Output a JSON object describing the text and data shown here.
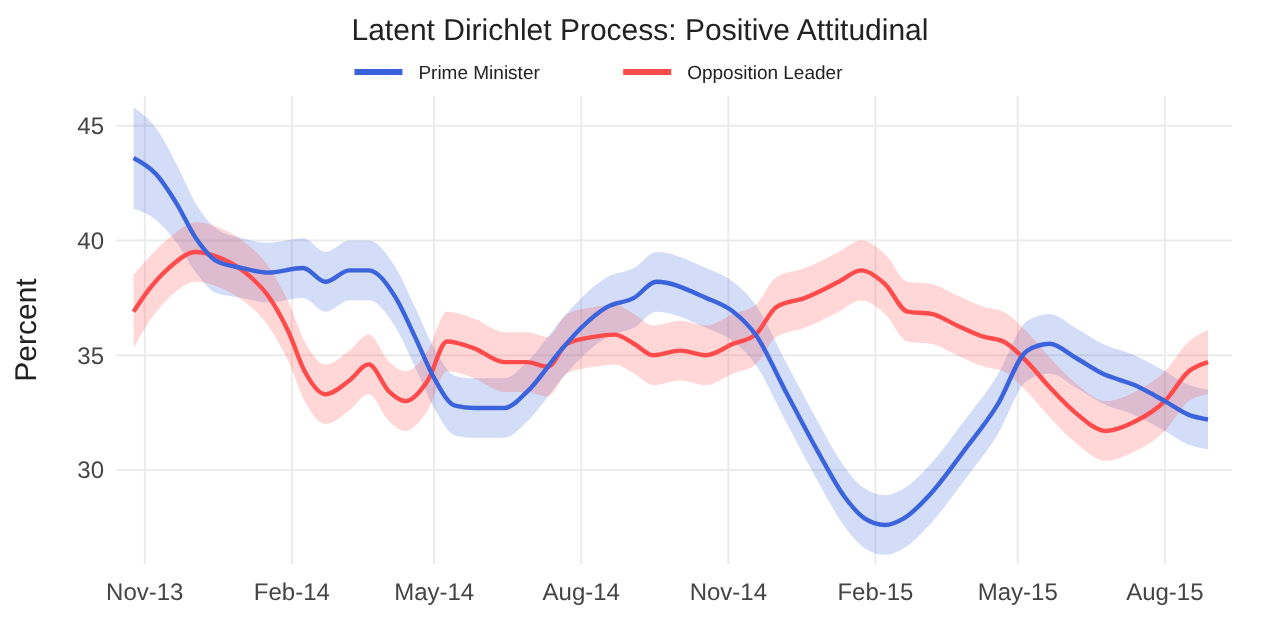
{
  "chart_data": {
    "type": "line",
    "title": "Latent Dirichlet Process: Positive Attitudinal",
    "ylabel": "Percent",
    "xlim": [
      "2013-10-14",
      "2015-09-12"
    ],
    "ylim": [
      25.9,
      46.3
    ],
    "xticks": [
      {
        "value": "2013-11-01",
        "label": "Nov-13"
      },
      {
        "value": "2014-02-01",
        "label": "Feb-14"
      },
      {
        "value": "2014-05-01",
        "label": "May-14"
      },
      {
        "value": "2014-08-01",
        "label": "Aug-14"
      },
      {
        "value": "2014-11-01",
        "label": "Nov-14"
      },
      {
        "value": "2015-02-01",
        "label": "Feb-15"
      },
      {
        "value": "2015-05-01",
        "label": "May-15"
      },
      {
        "value": "2015-08-01",
        "label": "Aug-15"
      }
    ],
    "yticks": [
      30,
      35,
      40,
      45
    ],
    "grid": true,
    "legend": "top",
    "series": [
      {
        "name": "Prime Minister",
        "color": "#3b64dc",
        "x": [
          "2013-10-25",
          "2013-11-08",
          "2013-11-21",
          "2013-12-03",
          "2013-12-16",
          "2014-01-01",
          "2014-01-17",
          "2014-02-08",
          "2014-02-22",
          "2014-03-09",
          "2014-03-21",
          "2014-04-07",
          "2014-04-19",
          "2014-05-01",
          "2014-05-14",
          "2014-05-26",
          "2014-06-14",
          "2014-06-28",
          "2014-07-19",
          "2014-08-01",
          "2014-08-17",
          "2014-09-03",
          "2014-09-17",
          "2014-10-18",
          "2014-11-04",
          "2014-11-18",
          "2014-12-07",
          "2014-12-27",
          "2015-01-13",
          "2015-01-25",
          "2015-02-07",
          "2015-02-19",
          "2015-03-08",
          "2015-03-28",
          "2015-04-18",
          "2015-05-07",
          "2015-05-21",
          "2015-06-06",
          "2015-06-23",
          "2015-07-13",
          "2015-08-01",
          "2015-08-16",
          "2015-08-28"
        ],
        "values": [
          43.6,
          42.9,
          41.6,
          40.1,
          39.1,
          38.8,
          38.6,
          38.8,
          38.2,
          38.7,
          38.7,
          37.5,
          35.8,
          34.0,
          32.8,
          32.7,
          32.7,
          33.4,
          35.2,
          36.2,
          37.1,
          37.5,
          38.2,
          37.5,
          36.9,
          35.9,
          33.4,
          30.8,
          28.8,
          27.9,
          27.6,
          27.9,
          29.0,
          30.8,
          32.8,
          35.2,
          35.5,
          34.9,
          34.2,
          33.7,
          33.0,
          32.4,
          32.2
        ],
        "lower": [
          41.4,
          40.9,
          39.9,
          38.6,
          37.7,
          37.5,
          37.3,
          37.5,
          36.9,
          37.4,
          37.4,
          36.2,
          34.5,
          32.7,
          31.5,
          31.4,
          31.4,
          32.1,
          33.9,
          34.9,
          35.8,
          36.2,
          36.9,
          36.2,
          35.6,
          34.6,
          32.1,
          29.5,
          27.5,
          26.6,
          26.3,
          26.6,
          27.7,
          29.5,
          31.5,
          33.9,
          34.2,
          33.6,
          32.9,
          32.4,
          31.7,
          31.1,
          30.9
        ],
        "upper": [
          45.8,
          44.9,
          43.3,
          41.6,
          40.5,
          40.1,
          39.9,
          40.1,
          39.5,
          40.0,
          40.0,
          38.8,
          37.1,
          35.3,
          34.1,
          34.0,
          34.0,
          34.7,
          36.5,
          37.5,
          38.4,
          38.8,
          39.5,
          38.8,
          38.2,
          37.2,
          34.7,
          32.1,
          30.1,
          29.2,
          28.9,
          29.2,
          30.3,
          32.1,
          34.1,
          36.5,
          36.8,
          36.2,
          35.5,
          35.0,
          34.3,
          33.7,
          33.5
        ]
      },
      {
        "name": "Opposition Leader",
        "color": "#ff4b4b",
        "x": [
          "2013-10-25",
          "2013-11-04",
          "2013-11-16",
          "2013-12-03",
          "2013-12-16",
          "2014-01-01",
          "2014-01-17",
          "2014-01-30",
          "2014-02-09",
          "2014-02-22",
          "2014-03-09",
          "2014-03-21",
          "2014-04-03",
          "2014-04-13",
          "2014-04-27",
          "2014-05-09",
          "2014-05-26",
          "2014-06-14",
          "2014-06-28",
          "2014-07-11",
          "2014-07-23",
          "2014-08-09",
          "2014-08-22",
          "2014-09-03",
          "2014-09-15",
          "2014-10-02",
          "2014-10-18",
          "2014-11-04",
          "2014-11-18",
          "2014-12-01",
          "2014-12-19",
          "2015-01-09",
          "2015-01-23",
          "2015-02-07",
          "2015-02-21",
          "2015-03-08",
          "2015-03-24",
          "2015-04-10",
          "2015-04-22",
          "2015-05-07",
          "2015-05-21",
          "2015-06-06",
          "2015-06-25",
          "2015-07-13",
          "2015-08-01",
          "2015-08-16",
          "2015-08-28"
        ],
        "values": [
          36.9,
          37.9,
          38.8,
          39.5,
          39.3,
          38.7,
          37.6,
          36.0,
          34.3,
          33.3,
          33.9,
          34.6,
          33.4,
          33.0,
          33.9,
          35.6,
          35.3,
          34.7,
          34.7,
          34.5,
          35.5,
          35.8,
          35.9,
          35.5,
          35.0,
          35.2,
          35.0,
          35.5,
          35.9,
          37.1,
          37.5,
          38.2,
          38.7,
          38.1,
          36.9,
          36.8,
          36.3,
          35.8,
          35.6,
          34.7,
          33.6,
          32.5,
          31.7,
          32.1,
          33.0,
          34.3,
          34.7
        ],
        "lower": [
          35.3,
          36.5,
          37.5,
          38.2,
          38.0,
          37.4,
          36.3,
          34.7,
          33.0,
          32.0,
          32.6,
          33.3,
          32.1,
          31.7,
          32.6,
          34.3,
          34.0,
          33.4,
          33.4,
          33.2,
          34.2,
          34.5,
          34.6,
          34.2,
          33.7,
          33.9,
          33.7,
          34.2,
          34.6,
          35.8,
          36.2,
          36.9,
          37.4,
          36.8,
          35.6,
          35.5,
          35.0,
          34.5,
          34.3,
          33.4,
          32.3,
          31.2,
          30.4,
          30.8,
          31.7,
          33.0,
          33.3
        ],
        "upper": [
          38.5,
          39.3,
          40.1,
          40.8,
          40.6,
          40.0,
          38.9,
          37.3,
          35.6,
          34.6,
          35.2,
          35.9,
          34.7,
          34.3,
          35.2,
          36.9,
          36.6,
          36.0,
          36.0,
          35.8,
          36.8,
          37.1,
          37.2,
          36.8,
          36.3,
          36.5,
          36.3,
          36.8,
          37.2,
          38.4,
          38.8,
          39.5,
          40.0,
          39.4,
          38.2,
          38.1,
          37.6,
          37.1,
          36.9,
          36.0,
          34.9,
          33.8,
          33.0,
          33.4,
          34.3,
          35.6,
          36.1
        ]
      }
    ]
  }
}
